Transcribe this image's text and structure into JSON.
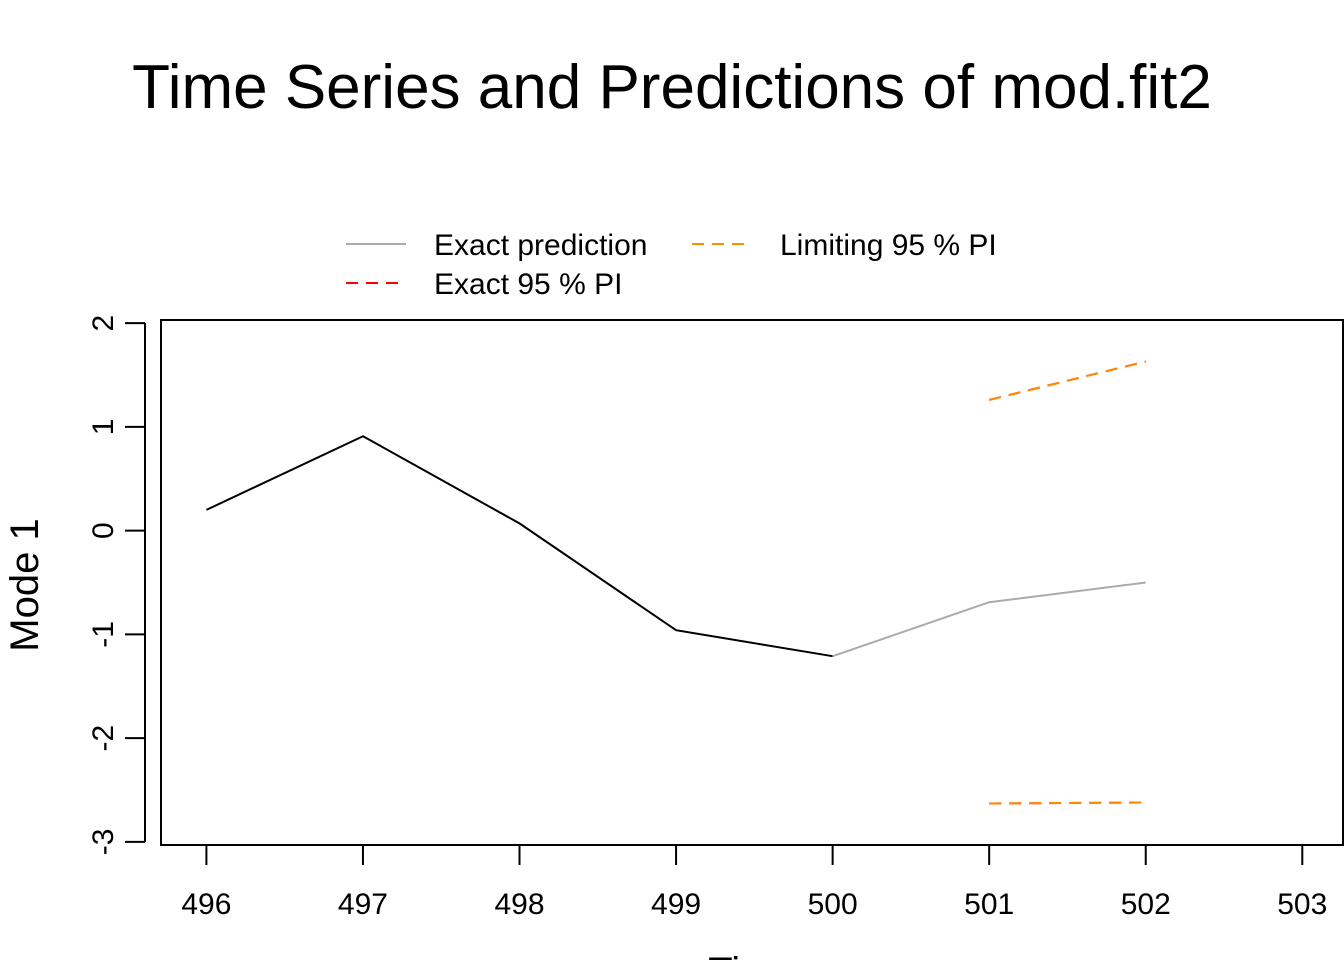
{
  "chart_data": {
    "type": "line",
    "title": "Time Series and Predictions of mod.fit2",
    "xlabel": "Time",
    "ylabel": "Mode 1",
    "xlim": [
      496,
      503
    ],
    "ylim": [
      -3,
      2
    ],
    "x_ticks": [
      "496",
      "497",
      "498",
      "499",
      "500",
      "501",
      "502",
      "503"
    ],
    "y_ticks": [
      "-3",
      "-2",
      "-1",
      "0",
      "1",
      "2"
    ],
    "grid": false,
    "legend_position": "top-center",
    "legend": [
      {
        "label": "Exact prediction",
        "color": "#aaaaaa",
        "style": "solid"
      },
      {
        "label": "Limiting 95 % PI",
        "color": "#ff8c00",
        "style": "dashed"
      },
      {
        "label": "Exact 95 % PI",
        "color": "#ff0000",
        "style": "dashed"
      }
    ],
    "series": [
      {
        "color": "#000000",
        "style": "solid",
        "x": [
          496,
          497,
          498,
          499,
          500
        ],
        "y": [
          0.2,
          0.91,
          0.07,
          -0.96,
          -1.21
        ]
      },
      {
        "name": "Exact prediction",
        "color": "#aaaaaa",
        "style": "solid",
        "x": [
          500,
          501,
          502
        ],
        "y": [
          -1.21,
          -0.69,
          -0.5
        ]
      },
      {
        "name": "Exact 95 % PI",
        "color": "#ff0000",
        "style": "dashed",
        "x": [
          501,
          502
        ],
        "y": [
          1.26,
          1.63
        ]
      },
      {
        "name": "Exact 95 % PI",
        "color": "#ff0000",
        "style": "dashed",
        "x": [
          501,
          502
        ],
        "y": [
          -2.63,
          -2.62
        ]
      },
      {
        "name": "Limiting 95 % PI",
        "color": "#ff8c00",
        "style": "dashed",
        "x": [
          501,
          502
        ],
        "y": [
          1.26,
          1.63
        ]
      },
      {
        "name": "Limiting 95 % PI",
        "color": "#ff8c00",
        "style": "dashed",
        "x": [
          501,
          502
        ],
        "y": [
          -2.63,
          -2.62
        ]
      }
    ]
  }
}
